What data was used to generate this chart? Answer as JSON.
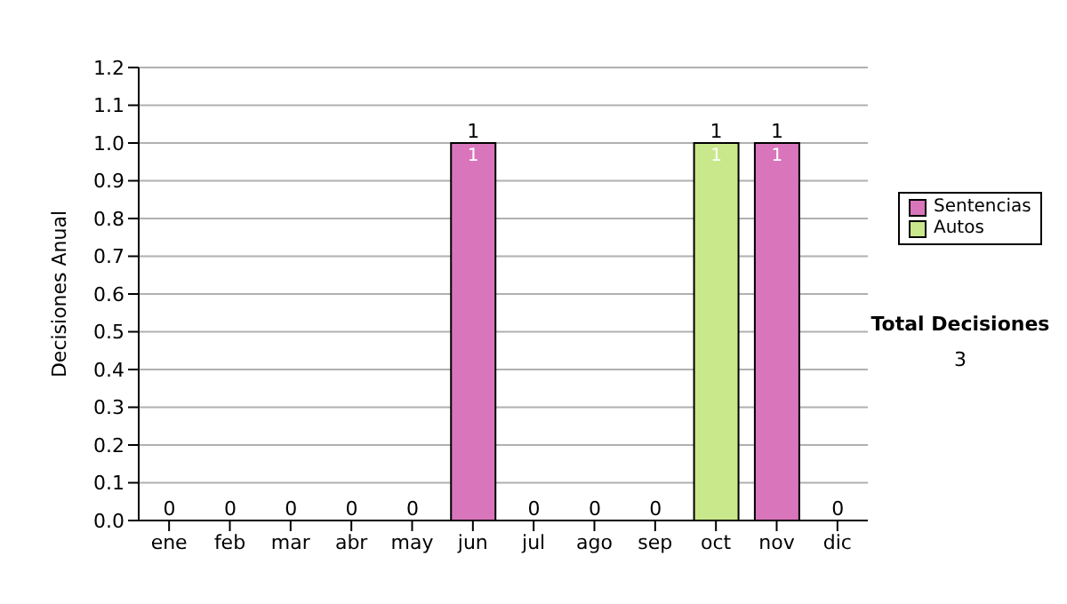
{
  "chart_data": {
    "type": "bar",
    "ylabel": "Decisiones Anual",
    "categories": [
      "ene",
      "feb",
      "mar",
      "abr",
      "may",
      "jun",
      "jul",
      "ago",
      "sep",
      "oct",
      "nov",
      "dic"
    ],
    "series": [
      {
        "name": "Sentencias",
        "color": "#d975bb",
        "values": [
          0,
          0,
          0,
          0,
          0,
          1,
          0,
          0,
          0,
          0,
          1,
          0
        ],
        "value_labels": [
          null,
          null,
          null,
          null,
          null,
          "1",
          null,
          null,
          null,
          null,
          "1",
          null
        ]
      },
      {
        "name": "Autos",
        "color": "#c9e88c",
        "values": [
          0,
          0,
          0,
          0,
          0,
          0,
          0,
          0,
          0,
          1,
          0,
          0
        ],
        "value_labels": [
          null,
          null,
          null,
          null,
          null,
          null,
          null,
          null,
          null,
          "1",
          null,
          null
        ]
      }
    ],
    "stacked": true,
    "totals": [
      "0",
      "0",
      "0",
      "0",
      "0",
      "1",
      "0",
      "0",
      "0",
      "1",
      "1",
      "0"
    ],
    "ylim": [
      0,
      1.2
    ],
    "yticks": [
      {
        "value": 0,
        "label": "0.0"
      },
      {
        "value": 0.1,
        "label": "0.1"
      },
      {
        "value": 0.2,
        "label": "0.2"
      },
      {
        "value": 0.3,
        "label": "0.3"
      },
      {
        "value": 0.4,
        "label": "0.4"
      },
      {
        "value": 0.5,
        "label": "0.5"
      },
      {
        "value": 0.6,
        "label": "0.6"
      },
      {
        "value": 0.7,
        "label": "0.7"
      },
      {
        "value": 0.8,
        "label": "0.8"
      },
      {
        "value": 0.9,
        "label": "0.9"
      },
      {
        "value": 1,
        "label": "1.0"
      },
      {
        "value": 1.1,
        "label": "1.1"
      },
      {
        "value": 1.2,
        "label": "1.2"
      }
    ],
    "grid": "y",
    "legend": "right",
    "annotations": [
      "Total Decisiones",
      "3"
    ]
  }
}
